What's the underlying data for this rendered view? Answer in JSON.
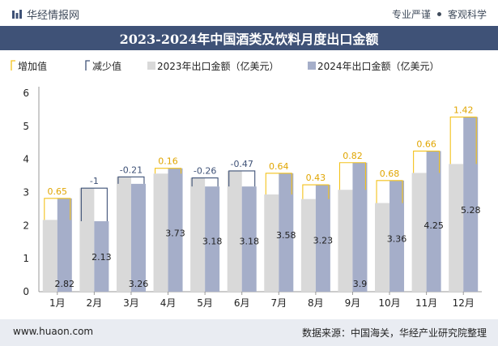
{
  "header": {
    "brand": "华经情报网",
    "slogan_left": "专业严谨",
    "slogan_right": "客观科学"
  },
  "colors": {
    "title_bar": "#3f5277",
    "series_2023": "#d9d9d9",
    "series_2024": "#a5aec9",
    "increase": "#f4c21b",
    "decrease": "#3f5277"
  },
  "chart_data": {
    "type": "bar",
    "title": "2023-2024年中国酒类及饮料月度出口金额",
    "categories": [
      "1月",
      "2月",
      "3月",
      "4月",
      "5月",
      "6月",
      "7月",
      "8月",
      "9月",
      "10月",
      "11月",
      "12月"
    ],
    "series": [
      {
        "name": "2023年出口金额（亿美元）",
        "values": [
          2.17,
          3.13,
          3.47,
          3.57,
          3.44,
          3.65,
          2.94,
          2.8,
          3.08,
          2.68,
          3.59,
          3.86
        ]
      },
      {
        "name": "2024年出口金额（亿美元）",
        "values": [
          2.82,
          2.13,
          3.26,
          3.73,
          3.18,
          3.18,
          3.58,
          3.23,
          3.9,
          3.36,
          4.25,
          5.28
        ]
      }
    ],
    "changes": [
      0.65,
      -1,
      -0.21,
      0.16,
      -0.26,
      -0.47,
      0.64,
      0.43,
      0.82,
      0.68,
      0.66,
      1.42
    ],
    "change_labels": [
      "0.65",
      "-1",
      "-0.21",
      "0.16",
      "-0.26",
      "-0.47",
      "0.64",
      "0.43",
      "0.82",
      "0.68",
      "0.66",
      "1.42"
    ],
    "value_labels_2024": [
      "2.82",
      "2.13",
      "3.26",
      "3.73",
      "3.18",
      "3.18",
      "3.58",
      "3.23",
      "3.9",
      "3.36",
      "4.25",
      "5.28"
    ],
    "legend": [
      "增加值",
      "减少值",
      "2023年出口金额（亿美元）",
      "2024年出口金额（亿美元）"
    ],
    "y_ticks": [
      "0",
      "1",
      "2",
      "3",
      "4",
      "5",
      "6"
    ],
    "ylim": [
      0,
      6
    ],
    "grid": false,
    "legend_position": "top-left"
  },
  "footer": {
    "website": "www.huaon.com",
    "source": "数据来源：中国海关，华经产业研究院整理"
  }
}
